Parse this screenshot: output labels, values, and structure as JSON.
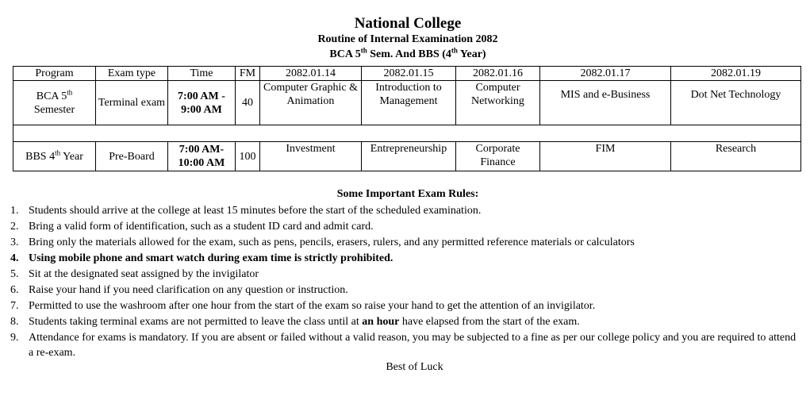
{
  "header": {
    "college": "National College",
    "routine": "Routine of Internal Examination 2082",
    "programs_pre": "BCA 5",
    "programs_sup1": "th",
    "programs_mid": " Sem. And BBS (4",
    "programs_sup2": "th",
    "programs_post": " Year)"
  },
  "table": {
    "headers": [
      "Program",
      "Exam type",
      "Time",
      "FM",
      "2082.01.14",
      "2082.01.15",
      "2082.01.16",
      "2082.01.17",
      "2082.01.19"
    ],
    "rows": [
      {
        "program_pre": "BCA 5",
        "program_sup": "th",
        "program_post": "Semester",
        "exam_type": "Terminal exam",
        "time_start": "7:00 AM -",
        "time_end": "9:00 AM",
        "fm": "40",
        "subjects": [
          "Computer Graphic & Animation",
          "Introduction to Management",
          "Computer Networking",
          "MIS and e-Business",
          "Dot Net Technology"
        ]
      },
      {
        "program_pre": "BBS 4",
        "program_sup": "th",
        "program_post": " Year",
        "exam_type": "Pre-Board",
        "time_start": "7:00 AM-",
        "time_end": "10:00 AM",
        "fm": "100",
        "subjects": [
          "Investment",
          "Entrepreneurship",
          "Corporate Finance",
          "FIM",
          "Research"
        ]
      }
    ]
  },
  "rules": {
    "heading": "Some Important Exam Rules:",
    "items": [
      {
        "n": "1.",
        "text": "Students should arrive at the college at least 15 minutes before the start of the scheduled examination."
      },
      {
        "n": "2.",
        "text": "Bring a valid form of identification, such as a student ID card and admit card."
      },
      {
        "n": "3.",
        "text": "Bring only the materials allowed for the exam, such as pens, pencils, erasers, rulers, and any permitted reference materials or calculators"
      },
      {
        "n": "4.",
        "text": "Using mobile phone and smart watch during exam time is strictly prohibited."
      },
      {
        "n": "5.",
        "text": "Sit at the designated seat assigned by the invigilator"
      },
      {
        "n": "6.",
        "text": "Raise your hand if you need clarification on any question or instruction."
      },
      {
        "n": "7.",
        "text": "Permitted to use the washroom after one hour from the start of the exam so raise your hand to get the attention of an invigilator."
      },
      {
        "n": "8.",
        "text_pre": "Students taking terminal exams are not permitted to leave the class until at ",
        "text_bold": "an hour",
        "text_post": " have elapsed from the start of the exam."
      },
      {
        "n": "9.",
        "text": "Attendance for exams is mandatory. If you are absent or failed without a valid reason, you may be subjected to a fine as per our college policy and you are required to attend a re-exam."
      }
    ],
    "closing": "Best of Luck"
  }
}
